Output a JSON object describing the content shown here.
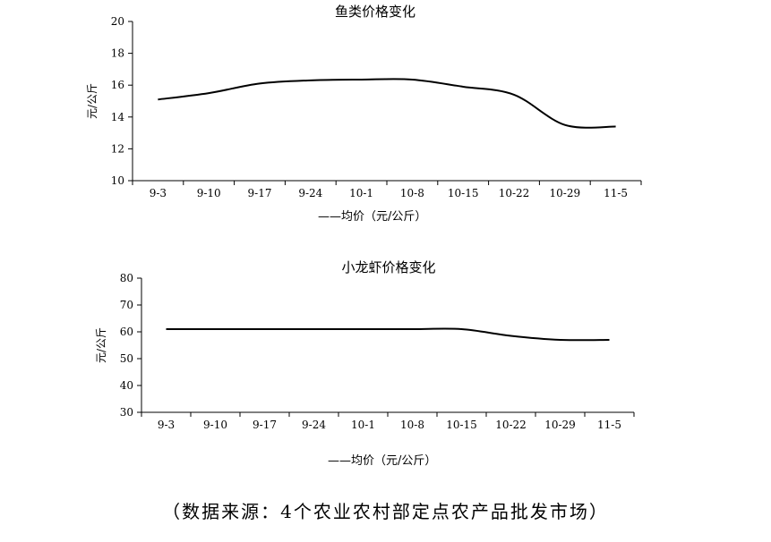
{
  "chart_data": [
    {
      "type": "line",
      "title": "鱼类价格变化",
      "ylabel": "元/公斤",
      "categories": [
        "9-3",
        "9-10",
        "9-17",
        "9-24",
        "10-1",
        "10-8",
        "10-15",
        "10-22",
        "10-29",
        "11-5"
      ],
      "series": [
        {
          "name": "——均价（元/公斤）",
          "values": [
            15.1,
            15.5,
            16.1,
            16.3,
            16.35,
            16.35,
            15.9,
            15.4,
            13.5,
            13.4
          ]
        }
      ],
      "ylim": [
        10,
        20
      ],
      "yticks": [
        10,
        12,
        14,
        16,
        18,
        20
      ],
      "grid": false,
      "legend": "bottom"
    },
    {
      "type": "line",
      "title": "小龙虾价格变化",
      "ylabel": "元/公斤",
      "categories": [
        "9-3",
        "9-10",
        "9-17",
        "9-24",
        "10-1",
        "10-8",
        "10-15",
        "10-22",
        "10-29",
        "11-5"
      ],
      "series": [
        {
          "name": "——均价（元/公斤）",
          "values": [
            61,
            61,
            61,
            61,
            61,
            61,
            61,
            58.5,
            57,
            57
          ]
        }
      ],
      "ylim": [
        30,
        80
      ],
      "yticks": [
        30,
        40,
        50,
        60,
        70,
        80
      ],
      "grid": false,
      "legend": "bottom"
    }
  ],
  "source": "（数据来源：4个农业农村部定点农产品批发市场）"
}
